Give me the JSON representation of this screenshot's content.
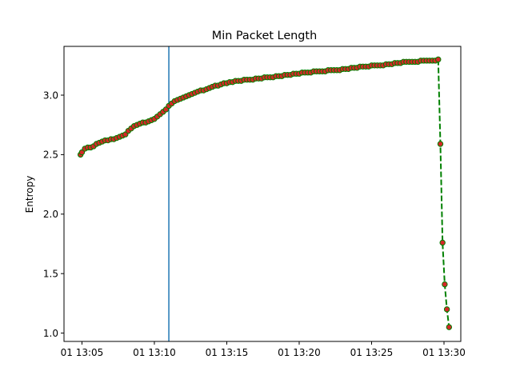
{
  "chart_data": {
    "type": "line",
    "title": "Min Packet Length",
    "xlabel": "",
    "ylabel": "Entropy",
    "x_ticks": [
      "01 13:05",
      "01 13:10",
      "01 13:15",
      "01 13:20",
      "01 13:25",
      "01 13:30"
    ],
    "x_tick_values": [
      5,
      10,
      15,
      20,
      25,
      30
    ],
    "x_unit": "minutes past 13:00",
    "xlim": [
      3.76,
      31.16
    ],
    "y_ticks": [
      "1.0",
      "1.5",
      "2.0",
      "2.5",
      "3.0"
    ],
    "y_tick_values": [
      1.0,
      1.5,
      2.0,
      2.5,
      3.0
    ],
    "ylim": [
      0.93,
      3.41
    ],
    "vline_x": 11.0,
    "grid": false,
    "colors": {
      "line": "#008000",
      "marker_face": "#d62728",
      "vline": "#1f77b4"
    },
    "series": [
      {
        "name": "",
        "x": [
          4.9,
          5.0,
          5.2,
          5.4,
          5.6,
          5.8,
          6.0,
          6.2,
          6.4,
          6.6,
          6.8,
          7.0,
          7.2,
          7.4,
          7.6,
          7.8,
          8.0,
          8.2,
          8.4,
          8.6,
          8.8,
          9.0,
          9.2,
          9.4,
          9.6,
          9.8,
          10.0,
          10.2,
          10.4,
          10.6,
          10.8,
          11.0,
          11.2,
          11.4,
          11.6,
          11.8,
          12.0,
          12.2,
          12.4,
          12.6,
          12.8,
          13.0,
          13.2,
          13.4,
          13.6,
          13.8,
          14.0,
          14.2,
          14.4,
          14.6,
          14.8,
          15.0,
          15.2,
          15.4,
          15.6,
          15.8,
          16.0,
          16.2,
          16.4,
          16.6,
          16.8,
          17.0,
          17.2,
          17.4,
          17.6,
          17.8,
          18.0,
          18.2,
          18.4,
          18.6,
          18.8,
          19.0,
          19.2,
          19.4,
          19.6,
          19.8,
          20.0,
          20.2,
          20.4,
          20.6,
          20.8,
          21.0,
          21.2,
          21.4,
          21.6,
          21.8,
          22.0,
          22.2,
          22.4,
          22.6,
          22.8,
          23.0,
          23.2,
          23.4,
          23.6,
          23.8,
          24.0,
          24.2,
          24.4,
          24.6,
          24.8,
          25.0,
          25.2,
          25.4,
          25.6,
          25.8,
          26.0,
          26.2,
          26.4,
          26.6,
          26.8,
          27.0,
          27.2,
          27.4,
          27.6,
          27.8,
          28.0,
          28.2,
          28.4,
          28.6,
          28.8,
          29.0,
          29.2,
          29.4,
          29.6,
          29.75,
          29.9,
          30.05,
          30.2,
          30.35
        ],
        "y": [
          2.5,
          2.52,
          2.55,
          2.56,
          2.56,
          2.57,
          2.59,
          2.6,
          2.61,
          2.62,
          2.62,
          2.63,
          2.63,
          2.64,
          2.65,
          2.66,
          2.67,
          2.7,
          2.72,
          2.74,
          2.75,
          2.76,
          2.77,
          2.77,
          2.78,
          2.79,
          2.8,
          2.82,
          2.84,
          2.86,
          2.88,
          2.91,
          2.93,
          2.95,
          2.96,
          2.97,
          2.98,
          2.99,
          3.0,
          3.01,
          3.02,
          3.03,
          3.04,
          3.04,
          3.05,
          3.06,
          3.07,
          3.08,
          3.08,
          3.09,
          3.1,
          3.1,
          3.11,
          3.11,
          3.12,
          3.12,
          3.12,
          3.13,
          3.13,
          3.13,
          3.13,
          3.14,
          3.14,
          3.14,
          3.15,
          3.15,
          3.15,
          3.15,
          3.16,
          3.16,
          3.16,
          3.17,
          3.17,
          3.17,
          3.18,
          3.18,
          3.18,
          3.19,
          3.19,
          3.19,
          3.19,
          3.2,
          3.2,
          3.2,
          3.2,
          3.2,
          3.21,
          3.21,
          3.21,
          3.21,
          3.21,
          3.22,
          3.22,
          3.22,
          3.23,
          3.23,
          3.23,
          3.24,
          3.24,
          3.24,
          3.24,
          3.25,
          3.25,
          3.25,
          3.25,
          3.25,
          3.26,
          3.26,
          3.26,
          3.27,
          3.27,
          3.27,
          3.28,
          3.28,
          3.28,
          3.28,
          3.28,
          3.28,
          3.29,
          3.29,
          3.29,
          3.29,
          3.29,
          3.29,
          3.3,
          2.59,
          1.76,
          1.41,
          1.2,
          1.05
        ]
      }
    ]
  }
}
